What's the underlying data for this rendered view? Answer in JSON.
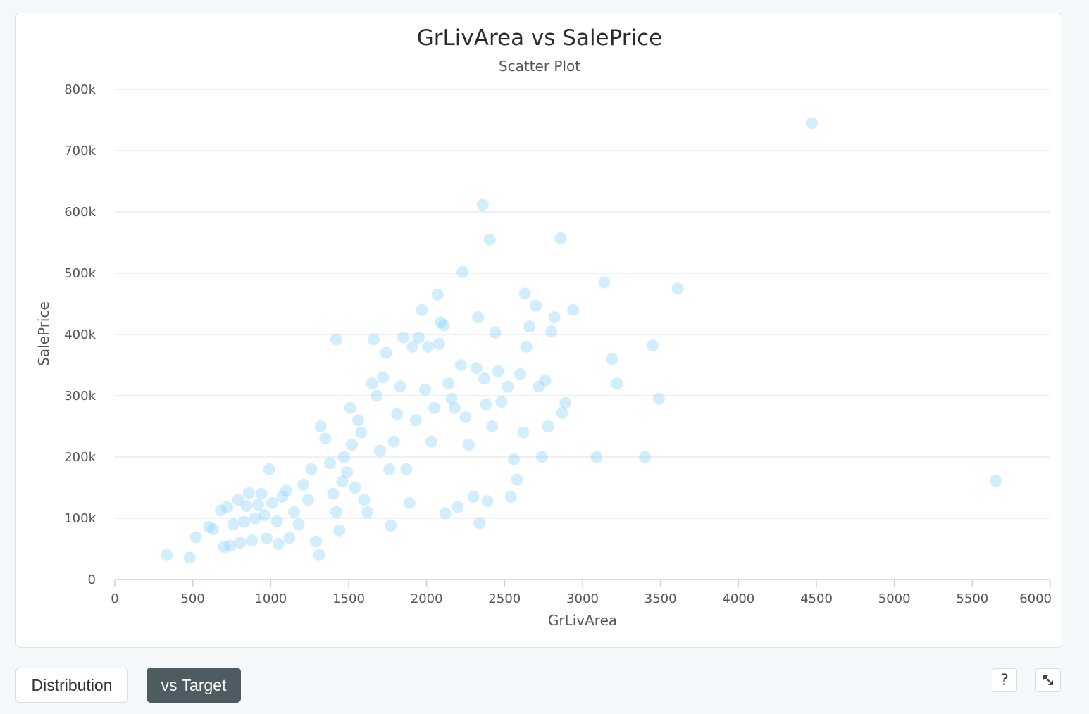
{
  "controls": {
    "distribution_label": "Distribution",
    "target_label": "vs Target",
    "help_label": "?",
    "active": "vs Target"
  },
  "colors": {
    "point": "#7dcffa",
    "active_button": "#4f5b62"
  },
  "icons": [
    "help-icon",
    "expand-icon"
  ],
  "chart_data": {
    "type": "scatter",
    "title": "GrLivArea vs SalePrice",
    "subtitle": "Scatter Plot",
    "xlabel": "GrLivArea",
    "ylabel": "SalePrice",
    "xlim": [
      0,
      6000
    ],
    "ylim": [
      0,
      800000
    ],
    "x_ticks": [
      0,
      500,
      1000,
      1500,
      2000,
      2500,
      3000,
      3500,
      4000,
      4500,
      5000,
      5500,
      6000
    ],
    "x_tick_labels": [
      "0",
      "500",
      "1000",
      "1500",
      "2000",
      "2500",
      "3000",
      "3500",
      "4000",
      "4500",
      "5000",
      "5500",
      "6000"
    ],
    "y_ticks": [
      0,
      100000,
      200000,
      300000,
      400000,
      500000,
      600000,
      700000,
      800000
    ],
    "y_tick_labels": [
      "0",
      "100k",
      "200k",
      "300k",
      "400k",
      "500k",
      "600k",
      "700k",
      "800k"
    ],
    "grid": "horizontal",
    "legend": "none",
    "point_opacity": 0.35,
    "points": [
      [
        334,
        40000
      ],
      [
        480,
        36000
      ],
      [
        520,
        69000
      ],
      [
        605,
        86000
      ],
      [
        630,
        82000
      ],
      [
        680,
        113000
      ],
      [
        700,
        53000
      ],
      [
        720,
        118000
      ],
      [
        740,
        55000
      ],
      [
        760,
        90000
      ],
      [
        790,
        130000
      ],
      [
        805,
        60000
      ],
      [
        830,
        94000
      ],
      [
        845,
        120000
      ],
      [
        860,
        141000
      ],
      [
        880,
        64000
      ],
      [
        900,
        100000
      ],
      [
        920,
        122000
      ],
      [
        940,
        140000
      ],
      [
        960,
        105000
      ],
      [
        975,
        67000
      ],
      [
        990,
        180000
      ],
      [
        1010,
        125000
      ],
      [
        1040,
        95000
      ],
      [
        1050,
        58000
      ],
      [
        1075,
        135000
      ],
      [
        1100,
        145000
      ],
      [
        1120,
        68000
      ],
      [
        1150,
        110000
      ],
      [
        1180,
        90000
      ],
      [
        1210,
        155000
      ],
      [
        1240,
        130000
      ],
      [
        1260,
        180000
      ],
      [
        1290,
        62000
      ],
      [
        1310,
        40000
      ],
      [
        1320,
        250000
      ],
      [
        1350,
        230000
      ],
      [
        1380,
        190000
      ],
      [
        1400,
        140000
      ],
      [
        1420,
        110000
      ],
      [
        1440,
        80000
      ],
      [
        1460,
        160000
      ],
      [
        1470,
        200000
      ],
      [
        1420,
        392000
      ],
      [
        1490,
        175000
      ],
      [
        1510,
        280000
      ],
      [
        1520,
        220000
      ],
      [
        1540,
        150000
      ],
      [
        1560,
        260000
      ],
      [
        1580,
        240000
      ],
      [
        1600,
        130000
      ],
      [
        1620,
        110000
      ],
      [
        1650,
        320000
      ],
      [
        1660,
        392000
      ],
      [
        1680,
        300000
      ],
      [
        1700,
        210000
      ],
      [
        1720,
        330000
      ],
      [
        1740,
        370000
      ],
      [
        1760,
        180000
      ],
      [
        1770,
        88000
      ],
      [
        1790,
        225000
      ],
      [
        1810,
        270000
      ],
      [
        1830,
        315000
      ],
      [
        1850,
        395000
      ],
      [
        1870,
        180000
      ],
      [
        1890,
        125000
      ],
      [
        1910,
        380000
      ],
      [
        1930,
        260000
      ],
      [
        1950,
        395000
      ],
      [
        1970,
        440000
      ],
      [
        1990,
        310000
      ],
      [
        2010,
        380000
      ],
      [
        2030,
        225000
      ],
      [
        2050,
        280000
      ],
      [
        2070,
        465000
      ],
      [
        2080,
        385000
      ],
      [
        2090,
        420000
      ],
      [
        2110,
        415000
      ],
      [
        2120,
        108000
      ],
      [
        2140,
        320000
      ],
      [
        2160,
        295000
      ],
      [
        2180,
        280000
      ],
      [
        2200,
        118000
      ],
      [
        2220,
        350000
      ],
      [
        2230,
        502000
      ],
      [
        2250,
        265000
      ],
      [
        2270,
        220000
      ],
      [
        2300,
        135000
      ],
      [
        2320,
        345000
      ],
      [
        2330,
        428000
      ],
      [
        2340,
        92000
      ],
      [
        2360,
        612000
      ],
      [
        2370,
        328000
      ],
      [
        2380,
        286000
      ],
      [
        2390,
        128000
      ],
      [
        2405,
        555000
      ],
      [
        2420,
        250000
      ],
      [
        2440,
        403000
      ],
      [
        2460,
        340000
      ],
      [
        2480,
        290000
      ],
      [
        2520,
        315000
      ],
      [
        2540,
        135000
      ],
      [
        2560,
        196000
      ],
      [
        2580,
        163000
      ],
      [
        2600,
        335000
      ],
      [
        2620,
        240000
      ],
      [
        2630,
        467000
      ],
      [
        2640,
        380000
      ],
      [
        2660,
        413000
      ],
      [
        2700,
        447000
      ],
      [
        2720,
        315000
      ],
      [
        2740,
        200000
      ],
      [
        2760,
        325000
      ],
      [
        2780,
        250000
      ],
      [
        2800,
        405000
      ],
      [
        2820,
        428000
      ],
      [
        2860,
        557000
      ],
      [
        2870,
        272000
      ],
      [
        2890,
        288000
      ],
      [
        2940,
        440000
      ],
      [
        3090,
        200000
      ],
      [
        3140,
        485000
      ],
      [
        3190,
        360000
      ],
      [
        3220,
        320000
      ],
      [
        3400,
        200000
      ],
      [
        3450,
        382000
      ],
      [
        3490,
        295000
      ],
      [
        3610,
        475000
      ],
      [
        4470,
        745000
      ],
      [
        5650,
        161000
      ]
    ]
  }
}
